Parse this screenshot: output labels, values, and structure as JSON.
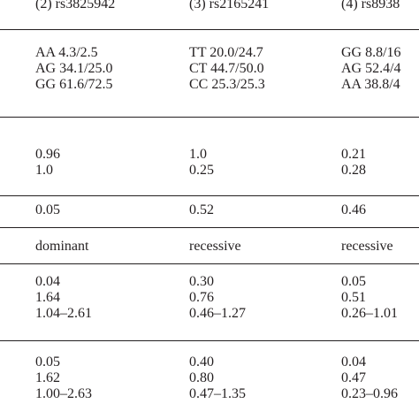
{
  "table": {
    "columns": [
      "(2) rs3825942",
      "(3) rs2165241",
      "(4) rs8938"
    ],
    "rows": [
      {
        "name": "genotype-frequencies",
        "cells": [
          [
            "AA 4.3/2.5",
            "AG 34.1/25.0",
            "GG 61.6/72.5"
          ],
          [
            "TT 20.0/24.7",
            "CT 44.7/50.0",
            "CC 25.3/25.3"
          ],
          [
            "GG 8.8/16",
            "AG 52.4/4",
            "AA 38.8/4"
          ]
        ]
      },
      {
        "name": "hwe-p-values",
        "cells": [
          [
            "0.96",
            "1.0"
          ],
          [
            "1.0",
            "0.25"
          ],
          [
            "0.21",
            "0.28"
          ]
        ]
      },
      {
        "name": "genotypic-p-value",
        "cells": [
          [
            "0.05"
          ],
          [
            "0.52"
          ],
          [
            "0.46"
          ]
        ]
      },
      {
        "name": "genetic-model",
        "cells": [
          [
            "dominant"
          ],
          [
            "recessive"
          ],
          [
            "recessive"
          ]
        ]
      },
      {
        "name": "model-stats-1",
        "cells": [
          [
            "0.04",
            "1.64",
            "1.04–2.61"
          ],
          [
            "0.30",
            "0.76",
            "0.46–1.27"
          ],
          [
            "0.05",
            "0.51",
            "0.26–1.01"
          ]
        ]
      },
      {
        "name": "model-stats-2",
        "cells": [
          [
            "0.05",
            "1.62",
            "1.00–2.63"
          ],
          [
            "0.40",
            "0.80",
            "0.47–1.35"
          ],
          [
            "0.04",
            "0.47",
            "0.23–0.96"
          ]
        ]
      }
    ]
  }
}
